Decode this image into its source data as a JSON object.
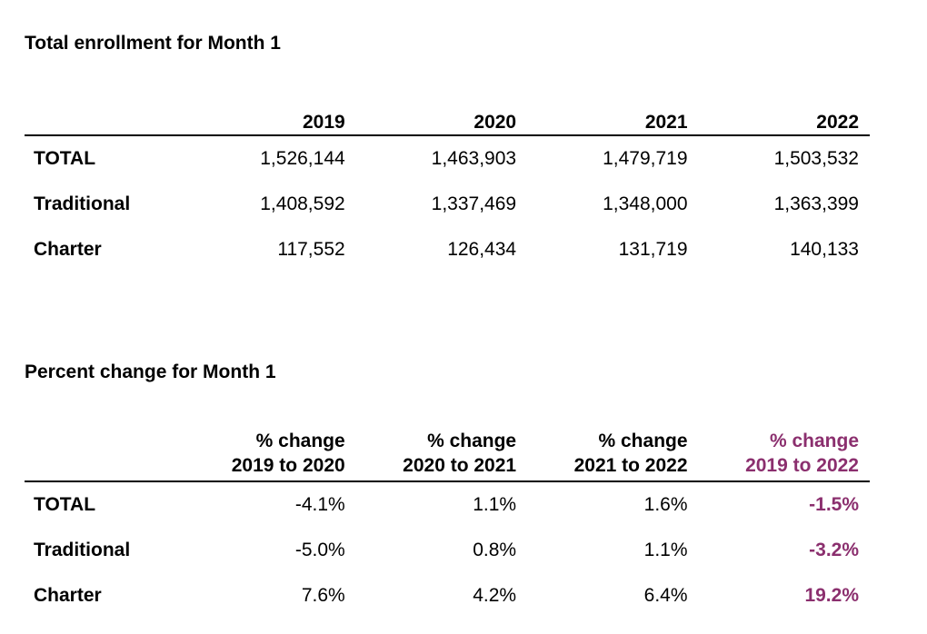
{
  "enrollment": {
    "title": "Total enrollment for Month 1",
    "columns": [
      "2019",
      "2020",
      "2021",
      "2022"
    ],
    "rows": [
      {
        "label": "TOTAL",
        "values": [
          "1,526,144",
          "1,463,903",
          "1,479,719",
          "1,503,532"
        ]
      },
      {
        "label": "Traditional",
        "values": [
          "1,408,592",
          "1,337,469",
          "1,348,000",
          "1,363,399"
        ]
      },
      {
        "label": "Charter",
        "values": [
          "117,552",
          "126,434",
          "131,719",
          "140,133"
        ]
      }
    ]
  },
  "percent_change": {
    "title": "Percent change for Month 1",
    "columns": [
      {
        "line1": "% change",
        "line2": "2019 to 2020"
      },
      {
        "line1": "% change",
        "line2": "2020 to 2021"
      },
      {
        "line1": "% change",
        "line2": "2021 to 2022"
      },
      {
        "line1": "% change",
        "line2": "2019 to 2022"
      }
    ],
    "rows": [
      {
        "label": "TOTAL",
        "values": [
          "-4.1%",
          "1.1%",
          "1.6%",
          "-1.5%"
        ]
      },
      {
        "label": "Traditional",
        "values": [
          "-5.0%",
          "0.8%",
          "1.1%",
          "-3.2%"
        ]
      },
      {
        "label": "Charter",
        "values": [
          "7.6%",
          "4.2%",
          "6.4%",
          "19.2%"
        ]
      }
    ],
    "accent_color": "#8b2f6e"
  }
}
